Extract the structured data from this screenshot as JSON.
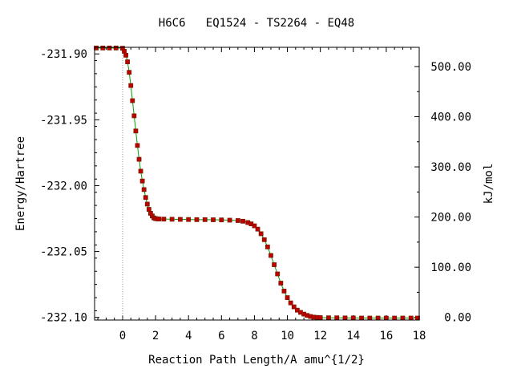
{
  "chart_data": {
    "type": "line",
    "title": "H6C6   EQ1524 - TS2264 - EQ48",
    "xlabel": "Reaction Path Length/A amu^{1/2}",
    "ylabel": "Energy/Hartree",
    "y2label": "kJ/mol",
    "xlim": [
      -1.7,
      18
    ],
    "ylim": [
      -232.102,
      -231.895
    ],
    "y2lim": [
      -5.3,
      538.3
    ],
    "x_ticks": [
      "0",
      "2",
      "4",
      "6",
      "8",
      "10",
      "12",
      "14",
      "16",
      "18"
    ],
    "y_ticks": [
      "-231.90",
      "-231.95",
      "-232.00",
      "-232.05",
      "-232.10"
    ],
    "y2_ticks": [
      "0.00",
      "100.00",
      "200.00",
      "300.00",
      "400.00",
      "500.00"
    ],
    "ts_marker_x": 0,
    "grid": false,
    "legend": "none",
    "colors": {
      "line": "#00a000",
      "marker": "#c00000",
      "marker_edge": "#7a1a00",
      "ts_line": "#888888"
    },
    "series": [
      {
        "x": [
          -1.6,
          -1.2,
          -0.8,
          -0.4,
          0.0,
          0.1,
          0.2,
          0.3,
          0.4,
          0.5,
          0.6,
          0.7,
          0.8,
          0.9,
          1.0,
          1.1,
          1.2,
          1.3,
          1.4,
          1.5,
          1.6,
          1.7,
          1.8,
          1.9,
          2.0,
          2.1,
          2.2,
          2.5,
          3.0,
          3.5,
          4.0,
          4.5,
          5.0,
          5.5,
          6.0,
          6.5,
          7.0,
          7.3,
          7.6,
          7.8,
          8.0,
          8.2,
          8.4,
          8.6,
          8.8,
          9.0,
          9.2,
          9.4,
          9.6,
          9.8,
          10.0,
          10.2,
          10.4,
          10.6,
          10.8,
          11.0,
          11.2,
          11.4,
          11.6,
          11.8,
          12.0,
          12.5,
          13.0,
          13.5,
          14.0,
          14.5,
          15.0,
          15.5,
          16.0,
          16.5,
          17.0,
          17.5,
          17.9
        ],
        "y": [
          -231.8955,
          -231.8955,
          -231.8955,
          -231.8955,
          -231.8957,
          -231.898,
          -231.901,
          -231.906,
          -231.914,
          -231.924,
          -231.9355,
          -231.947,
          -231.9585,
          -231.9695,
          -231.98,
          -231.989,
          -231.9965,
          -232.003,
          -232.009,
          -232.014,
          -232.018,
          -232.021,
          -232.023,
          -232.0245,
          -232.025,
          -232.0252,
          -232.0253,
          -232.0254,
          -232.0255,
          -232.0256,
          -232.0257,
          -232.0258,
          -232.0258,
          -232.0259,
          -232.026,
          -232.0262,
          -232.0265,
          -232.027,
          -232.028,
          -232.029,
          -232.0305,
          -232.033,
          -232.0365,
          -232.041,
          -232.0465,
          -232.053,
          -232.06,
          -232.067,
          -232.074,
          -232.08,
          -232.085,
          -232.089,
          -232.092,
          -232.0945,
          -232.0962,
          -232.0975,
          -232.0985,
          -232.0993,
          -232.0998,
          -232.1,
          -232.1002,
          -232.1003,
          -232.1003,
          -232.1004,
          -232.1004,
          -232.1005,
          -232.1005,
          -232.1005,
          -232.1005,
          -232.1005,
          -232.1005,
          -232.1005,
          -232.1005
        ]
      }
    ]
  }
}
